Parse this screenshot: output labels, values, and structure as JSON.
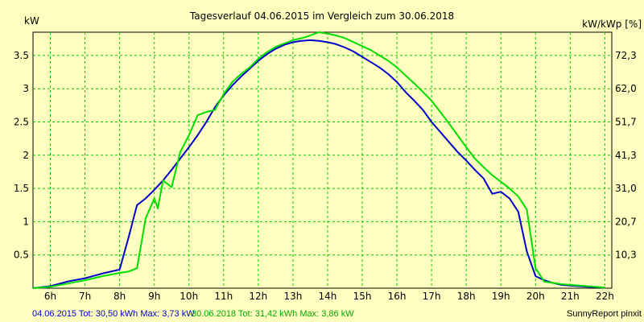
{
  "chart_data": {
    "type": "line",
    "title": "Tagesverlauf 04.06.2015 im Vergleich zum 30.06.2018",
    "ylabel_left": "kW",
    "ylabel_right": "kW/kWp [%]",
    "x_ticks": [
      "6h",
      "7h",
      "8h",
      "9h",
      "10h",
      "11h",
      "12h",
      "13h",
      "14h",
      "15h",
      "16h",
      "17h",
      "18h",
      "19h",
      "20h",
      "21h",
      "22h"
    ],
    "y_ticks_left": [
      "0.5",
      "1",
      "1.5",
      "2",
      "2.5",
      "3",
      "3.5"
    ],
    "y_ticks_right": [
      "10,3",
      "20,7",
      "31,0",
      "41,3",
      "51,7",
      "62,0",
      "72,3"
    ],
    "xlim": [
      5.5,
      22.2
    ],
    "ylim": [
      0,
      3.85
    ],
    "grid": true,
    "series": [
      {
        "name": "04.06.2015",
        "color": "#0000cc",
        "x": [
          5.5,
          6.0,
          6.5,
          7.0,
          7.5,
          8.0,
          8.25,
          8.5,
          8.75,
          9.0,
          9.25,
          9.5,
          9.75,
          10.0,
          10.25,
          10.5,
          10.75,
          11.0,
          11.25,
          11.5,
          11.75,
          12.0,
          12.25,
          12.5,
          12.75,
          13.0,
          13.25,
          13.5,
          13.75,
          14.0,
          14.25,
          14.5,
          14.75,
          15.0,
          15.25,
          15.5,
          15.75,
          16.0,
          16.25,
          16.5,
          16.75,
          17.0,
          17.25,
          17.5,
          17.75,
          18.0,
          18.25,
          18.5,
          18.75,
          19.0,
          19.25,
          19.5,
          19.75,
          20.0,
          20.25,
          20.5,
          20.75,
          21.0,
          21.5,
          22.0
        ],
        "values": [
          0.0,
          0.03,
          0.1,
          0.15,
          0.22,
          0.28,
          0.75,
          1.25,
          1.35,
          1.48,
          1.62,
          1.78,
          1.95,
          2.12,
          2.3,
          2.5,
          2.72,
          2.9,
          3.05,
          3.18,
          3.3,
          3.42,
          3.52,
          3.6,
          3.66,
          3.7,
          3.72,
          3.73,
          3.72,
          3.7,
          3.67,
          3.62,
          3.56,
          3.48,
          3.4,
          3.32,
          3.22,
          3.1,
          2.95,
          2.82,
          2.68,
          2.5,
          2.35,
          2.2,
          2.05,
          1.92,
          1.78,
          1.65,
          1.42,
          1.45,
          1.35,
          1.15,
          0.55,
          0.18,
          0.12,
          0.08,
          0.05,
          0.04,
          0.02,
          0.01
        ]
      },
      {
        "name": "30.06.2018",
        "color": "#00dd00",
        "x": [
          5.5,
          6.0,
          6.5,
          7.0,
          7.5,
          8.0,
          8.25,
          8.5,
          8.75,
          9.0,
          9.1,
          9.25,
          9.5,
          9.75,
          10.0,
          10.25,
          10.5,
          10.75,
          11.0,
          11.25,
          11.5,
          11.75,
          12.0,
          12.25,
          12.5,
          12.75,
          13.0,
          13.25,
          13.5,
          13.75,
          14.0,
          14.25,
          14.5,
          14.75,
          15.0,
          15.25,
          15.5,
          15.75,
          16.0,
          16.25,
          16.5,
          16.75,
          17.0,
          17.25,
          17.5,
          17.75,
          18.0,
          18.25,
          18.5,
          18.75,
          19.0,
          19.25,
          19.5,
          19.75,
          20.0,
          20.25,
          20.5,
          20.75,
          21.0,
          21.5,
          22.0
        ],
        "values": [
          0.0,
          0.02,
          0.07,
          0.12,
          0.18,
          0.23,
          0.25,
          0.3,
          1.05,
          1.35,
          1.2,
          1.62,
          1.52,
          2.05,
          2.3,
          2.6,
          2.65,
          2.68,
          2.92,
          3.1,
          3.22,
          3.32,
          3.45,
          3.55,
          3.63,
          3.68,
          3.73,
          3.76,
          3.8,
          3.85,
          3.83,
          3.8,
          3.76,
          3.7,
          3.64,
          3.58,
          3.5,
          3.42,
          3.32,
          3.2,
          3.08,
          2.95,
          2.82,
          2.65,
          2.48,
          2.3,
          2.12,
          1.95,
          1.82,
          1.7,
          1.6,
          1.5,
          1.38,
          1.18,
          0.3,
          0.1,
          0.08,
          0.06,
          0.05,
          0.03,
          0.01
        ]
      }
    ]
  },
  "footer": {
    "left_blue": "04.06.2015 Tot: 30,50 kWh Max: 3,73 kW",
    "left_green": "30.06.2018 Tot: 31,42 kWh Max: 3,86 kW",
    "right": "SunnyReport pinxit"
  }
}
